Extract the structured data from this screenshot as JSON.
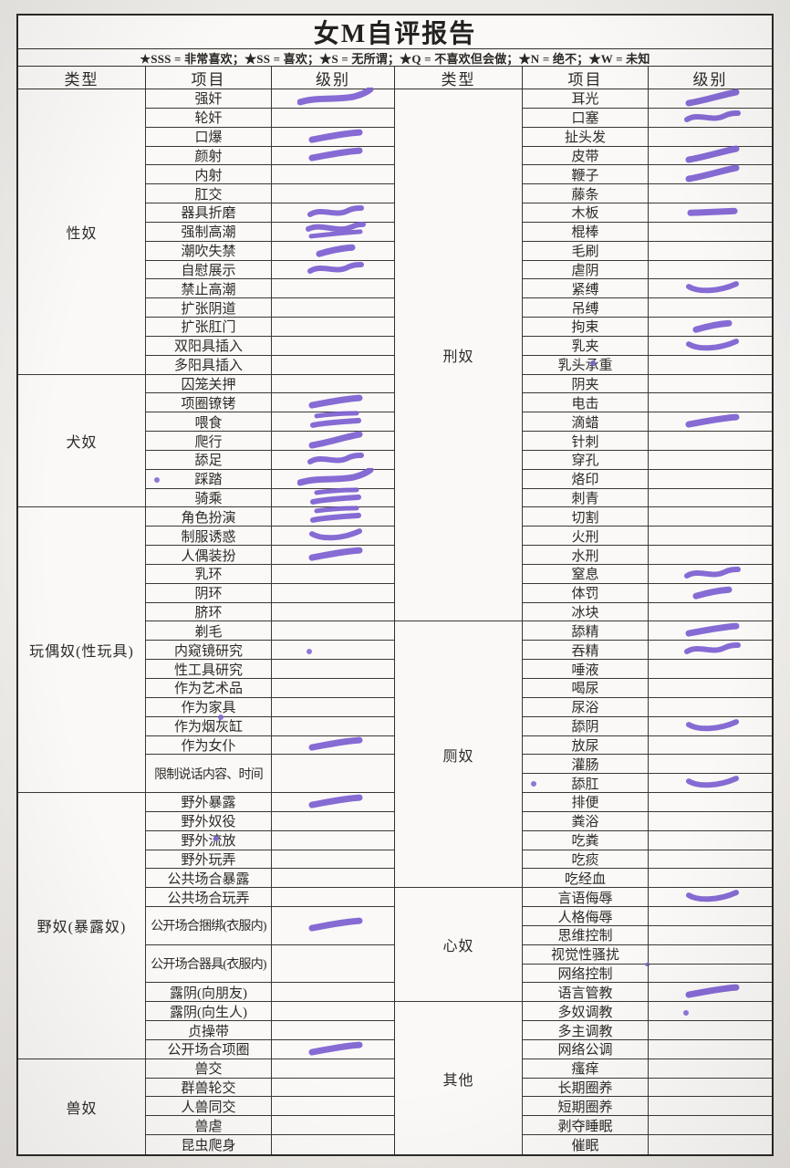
{
  "title": "女M自评报告",
  "legend": "★SSS = 非常喜欢；★SS = 喜欢；★S = 无所谓；★Q = 不喜欢但会做；★N = 绝不；★W = 未知",
  "columns": {
    "type": "类型",
    "item": "项目",
    "level": "级别"
  },
  "accent_color": "#7d5fd2",
  "left": {
    "categories": [
      {
        "name": "性奴",
        "items": [
          {
            "label": "强奸",
            "mark": "long"
          },
          {
            "label": "轮奸"
          },
          {
            "label": "口爆",
            "mark": "bar"
          },
          {
            "label": "颜射",
            "mark": "bar"
          },
          {
            "label": "内射"
          },
          {
            "label": "肛交"
          },
          {
            "label": "器具折磨",
            "mark": "squiggle"
          },
          {
            "label": "强制高潮",
            "mark": "squiggle2"
          },
          {
            "label": "潮吹失禁",
            "mark": "short"
          },
          {
            "label": "自慰展示",
            "mark": "squiggle"
          },
          {
            "label": "禁止高潮"
          },
          {
            "label": "扩张阴道"
          },
          {
            "label": "扩张肛门"
          },
          {
            "label": "双阳具插入"
          },
          {
            "label": "多阳具插入"
          }
        ]
      },
      {
        "name": "犬奴",
        "items": [
          {
            "label": "囚笼关押"
          },
          {
            "label": "项圈镣铐",
            "mark": "bar"
          },
          {
            "label": "喂食",
            "mark": "double"
          },
          {
            "label": "爬行",
            "mark": "bar2"
          },
          {
            "label": "舔足",
            "mark": "squiggle"
          },
          {
            "label": "踩踏",
            "mark": "long",
            "dot": "left"
          },
          {
            "label": "骑乘",
            "mark": "double"
          }
        ]
      },
      {
        "name": "玩偶奴(性玩具)",
        "items": [
          {
            "label": "角色扮演",
            "mark": "double"
          },
          {
            "label": "制服诱惑",
            "mark": "swoosh"
          },
          {
            "label": "人偶装扮",
            "mark": "bar"
          },
          {
            "label": "乳环"
          },
          {
            "label": "阴环"
          },
          {
            "label": "脐环"
          },
          {
            "label": "剃毛"
          },
          {
            "label": "内窥镜研究",
            "mark": "dot"
          },
          {
            "label": "性工具研究"
          },
          {
            "label": "作为艺术品"
          },
          {
            "label": "作为家具"
          },
          {
            "label": "作为烟灰缸",
            "dot": "top"
          },
          {
            "label": "作为女仆",
            "mark": "bar"
          },
          {
            "label": "限制说话内容、时间",
            "tall": true
          }
        ]
      },
      {
        "name": "野奴(暴露奴)",
        "items": [
          {
            "label": "野外暴露",
            "mark": "bar"
          },
          {
            "label": "野外奴役"
          },
          {
            "label": "野外流放",
            "dot": "on"
          },
          {
            "label": "野外玩弄"
          },
          {
            "label": "公共场合暴露"
          },
          {
            "label": "公共场合玩弄"
          },
          {
            "label": "公开场合捆绑(衣服内)",
            "tall": true,
            "mark": "bar"
          },
          {
            "label": "公开场合器具(衣服内)",
            "tall": true
          },
          {
            "label": "露阴(向朋友)"
          },
          {
            "label": "露阴(向生人)"
          },
          {
            "label": "贞操带"
          },
          {
            "label": "公开场合项圈",
            "mark": "bar"
          }
        ]
      },
      {
        "name": "兽奴",
        "items": [
          {
            "label": "兽交"
          },
          {
            "label": "群兽轮交"
          },
          {
            "label": "人兽同交"
          },
          {
            "label": "兽虐"
          },
          {
            "label": "昆虫爬身"
          }
        ]
      }
    ]
  },
  "right": {
    "categories": [
      {
        "name": "刑奴",
        "items": [
          {
            "label": "耳光",
            "mark": "bar2"
          },
          {
            "label": "口塞",
            "mark": "squiggle"
          },
          {
            "label": "扯头发"
          },
          {
            "label": "皮带",
            "mark": "bar2"
          },
          {
            "label": "鞭子",
            "mark": "bar2"
          },
          {
            "label": "藤条"
          },
          {
            "label": "木板",
            "mark": "flat"
          },
          {
            "label": "棍棒"
          },
          {
            "label": "毛刷"
          },
          {
            "label": "虐阴"
          },
          {
            "label": "紧缚",
            "mark": "swoosh"
          },
          {
            "label": "吊缚"
          },
          {
            "label": "拘束",
            "mark": "short"
          },
          {
            "label": "乳夹",
            "mark": "swoosh"
          },
          {
            "label": "乳头承重",
            "dot": "on"
          },
          {
            "label": "阴夹"
          },
          {
            "label": "电击"
          },
          {
            "label": "滴蜡",
            "mark": "bar"
          },
          {
            "label": "针刺"
          },
          {
            "label": "穿孔"
          },
          {
            "label": "烙印"
          },
          {
            "label": "刺青"
          },
          {
            "label": "切割"
          },
          {
            "label": "火刑"
          },
          {
            "label": "水刑"
          },
          {
            "label": "窒息",
            "mark": "squiggle"
          },
          {
            "label": "体罚",
            "mark": "short"
          },
          {
            "label": "冰块"
          }
        ]
      },
      {
        "name": "厕奴",
        "items": [
          {
            "label": "舔精",
            "mark": "bar"
          },
          {
            "label": "吞精",
            "mark": "squiggle"
          },
          {
            "label": "唾液"
          },
          {
            "label": "喝尿"
          },
          {
            "label": "尿浴"
          },
          {
            "label": "舔阴",
            "mark": "swoosh"
          },
          {
            "label": "放尿"
          },
          {
            "label": "灌肠"
          },
          {
            "label": "舔肛",
            "mark": "swoosh",
            "dot": "left"
          },
          {
            "label": "排便"
          },
          {
            "label": "粪浴"
          },
          {
            "label": "吃粪"
          },
          {
            "label": "吃痰"
          },
          {
            "label": "吃经血"
          }
        ]
      },
      {
        "name": "心奴",
        "items": [
          {
            "label": "言语侮辱",
            "mark": "swoosh"
          },
          {
            "label": "人格侮辱"
          },
          {
            "label": "思维控制"
          },
          {
            "label": "视觉性骚扰",
            "dot": "right"
          },
          {
            "label": "网络控制"
          },
          {
            "label": "语言管教",
            "mark": "bar"
          }
        ]
      },
      {
        "name": "其他",
        "items": [
          {
            "label": "多奴调教",
            "mark": "dot"
          },
          {
            "label": "多主调教"
          },
          {
            "label": "网络公调"
          },
          {
            "label": "瘙痒"
          },
          {
            "label": "长期圈养"
          },
          {
            "label": "短期圈养"
          },
          {
            "label": "剥夺睡眠"
          },
          {
            "label": "催眠"
          }
        ]
      }
    ]
  }
}
